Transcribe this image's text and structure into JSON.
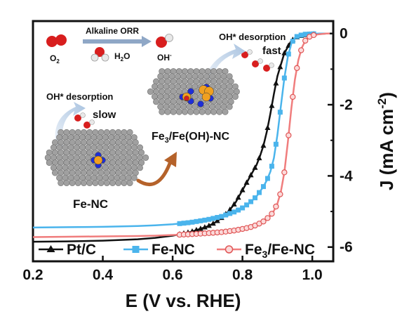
{
  "chart_data": {
    "type": "line",
    "xlabel": "E (V vs. RHE)",
    "ylabel_main": "J (mA cm",
    "ylabel_sup": "-2",
    "ylabel_close": ")",
    "xlim": [
      0.2,
      1.06
    ],
    "ylim": [
      -6.4,
      0.35
    ],
    "x_ticks": [
      "0.2",
      "0.4",
      "0.6",
      "0.8",
      "1.0"
    ],
    "y_ticks": [
      "0",
      "-2",
      "-4",
      "-6"
    ],
    "y_axis_side": "right",
    "legend_position": "bottom",
    "series": [
      {
        "name": "Pt/C",
        "color": "#111111",
        "marker": "triangle",
        "x": [
          0.2,
          0.3,
          0.4,
          0.5,
          0.55,
          0.6,
          0.65,
          0.7,
          0.72,
          0.74,
          0.76,
          0.78,
          0.8,
          0.82,
          0.84,
          0.85,
          0.86,
          0.87,
          0.88,
          0.89,
          0.9,
          0.92,
          0.94,
          0.96,
          0.98,
          1.0,
          1.02,
          1.04,
          1.05
        ],
        "y": [
          -5.85,
          -5.84,
          -5.82,
          -5.78,
          -5.74,
          -5.68,
          -5.58,
          -5.42,
          -5.32,
          -5.18,
          -5.0,
          -4.75,
          -4.4,
          -4.05,
          -3.7,
          -3.45,
          -3.15,
          -2.75,
          -2.25,
          -1.7,
          -1.2,
          -0.55,
          -0.2,
          -0.08,
          -0.04,
          -0.02,
          -0.01,
          0.0,
          0.0
        ]
      },
      {
        "name": "Fe-NC",
        "color": "#4ab4ec",
        "marker": "square",
        "x": [
          0.2,
          0.3,
          0.4,
          0.5,
          0.55,
          0.6,
          0.65,
          0.7,
          0.74,
          0.78,
          0.8,
          0.82,
          0.84,
          0.86,
          0.87,
          0.88,
          0.89,
          0.9,
          0.91,
          0.92,
          0.93,
          0.94,
          0.95,
          0.96,
          0.98,
          1.0,
          1.02,
          1.04,
          1.05
        ],
        "y": [
          -5.45,
          -5.44,
          -5.43,
          -5.41,
          -5.39,
          -5.36,
          -5.31,
          -5.23,
          -5.14,
          -5.0,
          -4.9,
          -4.76,
          -4.58,
          -4.3,
          -4.12,
          -3.88,
          -3.5,
          -2.85,
          -2.05,
          -1.25,
          -0.65,
          -0.28,
          -0.12,
          -0.06,
          -0.02,
          -0.01,
          0.0,
          0.0,
          0.0
        ]
      },
      {
        "name": "Fe3/Fe-NC",
        "legend_parts": [
          "Fe",
          "3",
          "/Fe-NC"
        ],
        "color": "#f07d7d",
        "marker": "circle",
        "x": [
          0.2,
          0.3,
          0.4,
          0.5,
          0.55,
          0.6,
          0.65,
          0.7,
          0.74,
          0.78,
          0.82,
          0.84,
          0.86,
          0.88,
          0.89,
          0.9,
          0.91,
          0.92,
          0.93,
          0.94,
          0.95,
          0.96,
          0.97,
          0.98,
          0.99,
          1.0,
          1.02,
          1.04,
          1.05
        ],
        "y": [
          -5.72,
          -5.71,
          -5.7,
          -5.69,
          -5.68,
          -5.66,
          -5.64,
          -5.61,
          -5.58,
          -5.53,
          -5.45,
          -5.38,
          -5.28,
          -5.12,
          -4.98,
          -4.78,
          -4.45,
          -3.9,
          -3.05,
          -2.1,
          -1.3,
          -0.75,
          -0.4,
          -0.2,
          -0.1,
          -0.05,
          -0.02,
          0.0,
          0.0
        ]
      }
    ]
  },
  "inset": {
    "alkaline_orr": "Alkaline ORR",
    "o2_label": "O",
    "o2_sub": "2",
    "h2o_label": "H",
    "h2o_sub": "2",
    "h2o_tail": "O",
    "oh_label": "OH",
    "oh_sup": "-",
    "desorption_left": "OH*  desorption",
    "slow_label": "slow",
    "desorption_right": "OH*  desorption",
    "fast_label": "fast",
    "fe_nc_label": "Fe-NC",
    "fe3_label_parts": [
      "Fe",
      "3",
      "/Fe(OH)-NC"
    ],
    "colors": {
      "slow": "#29a9e8",
      "fast": "#ee1c1c",
      "oxygen": "#d81e1e",
      "hydrogen": "#e8e8e8",
      "carbon": "#9a9a9a",
      "nitrogen": "#1e2ed8",
      "iron": "#f0a020",
      "arrow_blue": "#b9cfe6",
      "arrow_orange": "#b5622a"
    }
  }
}
